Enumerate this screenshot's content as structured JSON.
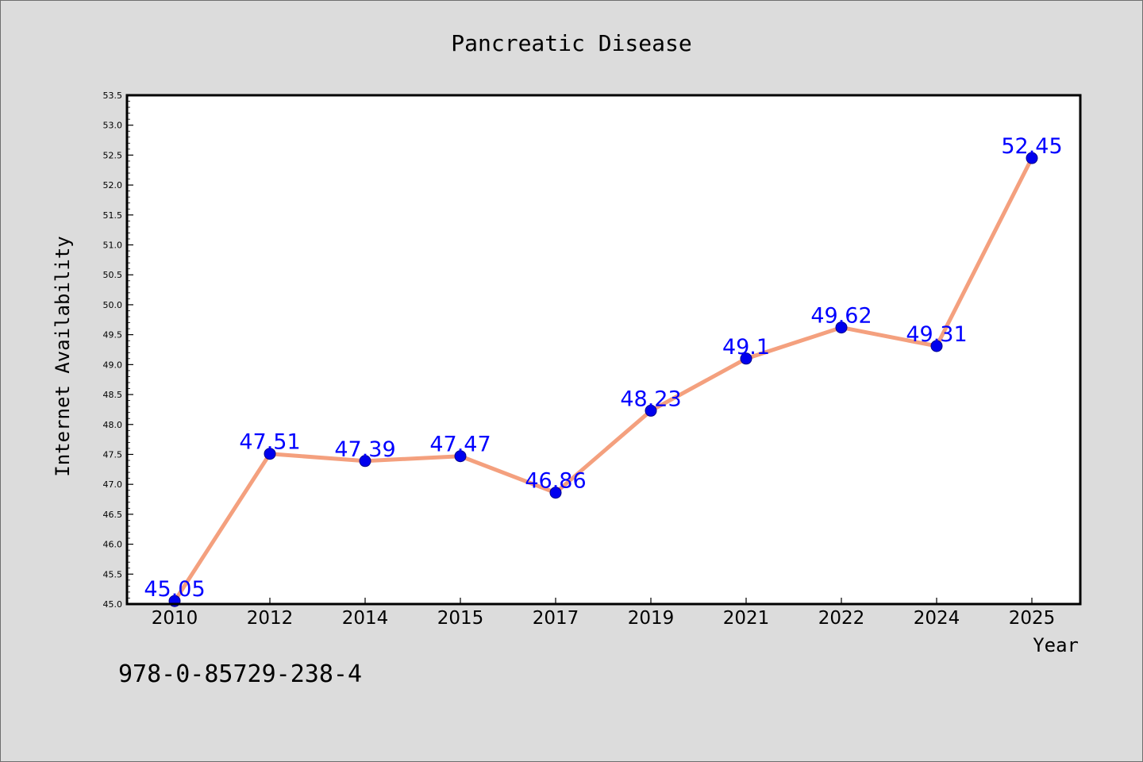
{
  "chart_data": {
    "type": "line",
    "title": "Pancreatic Disease",
    "xlabel": "Year",
    "ylabel": "Internet Availability",
    "categories": [
      "2010",
      "2012",
      "2014",
      "2015",
      "2017",
      "2019",
      "2021",
      "2022",
      "2024",
      "2025"
    ],
    "series": [
      {
        "values": [
          45.05,
          47.51,
          47.39,
          47.47,
          46.86,
          48.23,
          49.1,
          49.62,
          49.31,
          52.45
        ],
        "data_labels": [
          "45.05",
          "47.51",
          "47.39",
          "47.47",
          "46.86",
          "48.23",
          "49.1",
          "49.62",
          "49.31",
          "52.45"
        ]
      }
    ],
    "ylim": [
      45.0,
      53.5
    ],
    "y_ticks": [
      "45.0",
      "45.5",
      "46.0",
      "46.5",
      "47.0",
      "47.5",
      "48.0",
      "48.5",
      "49.0",
      "49.5",
      "50.0",
      "50.5",
      "51.0",
      "51.5",
      "52.0",
      "52.5",
      "53.0",
      "53.5"
    ],
    "grid": false,
    "legend": "none",
    "colors": {
      "line": "#f4a07e",
      "marker": "#0000ee",
      "marker_edge": "#00008b",
      "data_label": "#0000ff",
      "plot_background": "#ffffff",
      "figure_background": "#dcdcdc"
    }
  },
  "footer": {
    "code": "978-0-85729-238-4"
  }
}
